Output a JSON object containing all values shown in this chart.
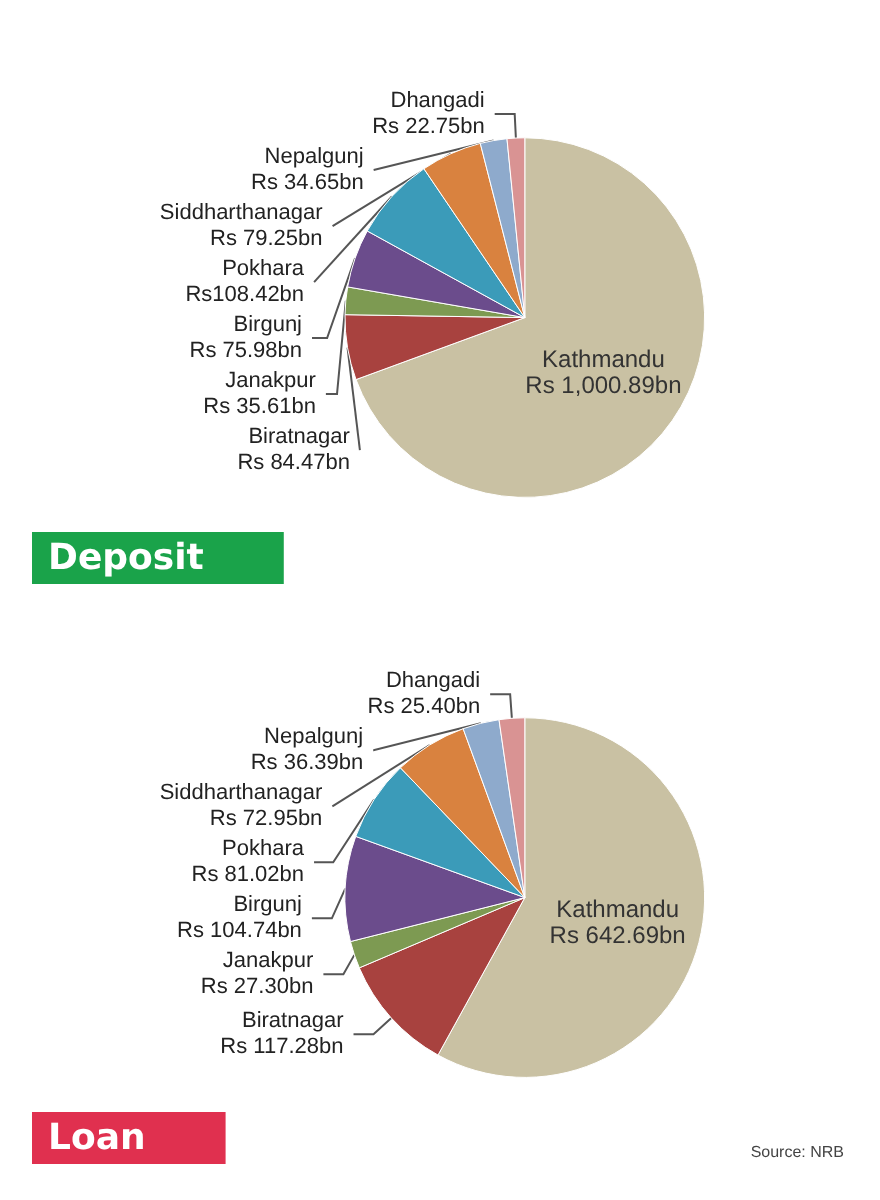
{
  "chart_data": [
    {
      "type": "pie",
      "title": "Deposit",
      "categories": [
        "Kathmandu",
        "Biratnagar",
        "Janakpur",
        "Birgunj",
        "Pokhara",
        "Siddharthanagar",
        "Nepalgunj",
        "Dhangadi"
      ],
      "values": [
        69.4,
        5.86,
        2.47,
        5.27,
        7.52,
        5.5,
        2.4,
        1.58
      ],
      "value_labels": [
        "Rs 1,000.89bn",
        "Rs 84.47bn",
        "Rs 35.61bn",
        "Rs 75.98bn",
        "Rs108.42bn",
        "Rs 79.25bn",
        "Rs 34.65bn",
        "Rs 22.75bn"
      ],
      "colors": [
        "#c9c1a3",
        "#a8423f",
        "#7d9a52",
        "#6b4c8c",
        "#3b9bb9",
        "#d9823f",
        "#8eaacc",
        "#d99393"
      ],
      "legend": false
    },
    {
      "type": "pie",
      "title": "Loan",
      "categories": [
        "Kathmandu",
        "Biratnagar",
        "Janakpur",
        "Birgunj",
        "Pokhara",
        "Siddharthanagar",
        "Nepalgunj",
        "Dhangadi"
      ],
      "values": [
        58.02,
        10.59,
        2.46,
        9.46,
        7.31,
        6.59,
        3.28,
        2.29
      ],
      "value_labels": [
        "Rs 642.69bn",
        "Rs 117.28bn",
        "Rs 27.30bn",
        "Rs 104.74bn",
        "Rs 81.02bn",
        "Rs 72.95bn",
        "Rs 36.39bn",
        "Rs 25.40bn"
      ],
      "colors": [
        "#c9c1a3",
        "#a8423f",
        "#7d9a52",
        "#6b4c8c",
        "#3b9bb9",
        "#d9823f",
        "#8eaacc",
        "#d99393"
      ],
      "legend": false,
      "annotations": [
        "Source: NRB"
      ]
    }
  ]
}
